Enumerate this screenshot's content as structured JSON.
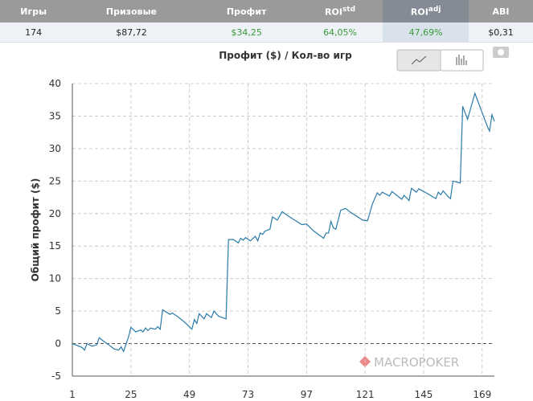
{
  "stats": {
    "headers": [
      {
        "text": "Игры"
      },
      {
        "text": "Призовые"
      },
      {
        "text": "Профит"
      },
      {
        "text": "ROI",
        "sup": "std"
      },
      {
        "text": "ROI",
        "sup": "adj"
      },
      {
        "text": "ABI"
      }
    ],
    "values": [
      "174",
      "$87,72",
      "$34,25",
      "64,05%",
      "47,69%",
      "$0,31"
    ]
  },
  "chart_data": {
    "type": "line",
    "title": "Профит ($) / Кол-во игр",
    "y_label": "Общий профит ($)",
    "watermark": "MACROPOKER",
    "x": [
      1,
      3,
      5,
      6,
      7,
      9,
      11,
      12,
      14,
      16,
      18,
      20,
      21,
      22,
      24,
      25,
      27,
      29,
      30,
      31,
      32,
      33,
      35,
      36,
      37,
      38,
      41,
      42,
      44,
      47,
      50,
      51,
      52,
      53,
      55,
      56,
      58,
      59,
      61,
      64,
      65,
      67,
      69,
      70,
      71,
      72,
      74,
      76,
      77,
      78,
      79,
      80,
      82,
      83,
      85,
      87,
      90,
      93,
      95,
      97,
      100,
      104,
      105,
      106,
      107,
      108,
      109,
      111,
      113,
      115,
      120,
      122,
      124,
      126,
      127,
      128,
      130,
      131,
      132,
      134,
      136,
      137,
      139,
      140,
      142,
      143,
      146,
      150,
      151,
      152,
      153,
      155,
      156,
      157,
      160,
      161,
      163,
      166,
      169,
      171,
      172,
      173,
      174
    ],
    "series": [
      {
        "name": "Профит",
        "color": "#2a7aa8",
        "values": [
          0,
          -0.3,
          -0.6,
          -1.0,
          0,
          -0.4,
          -0.2,
          0.9,
          0.3,
          -0.2,
          -0.8,
          -1.0,
          -0.5,
          -1.2,
          1.0,
          2.5,
          1.8,
          2.1,
          1.8,
          2.4,
          2.0,
          2.4,
          2.2,
          2.6,
          2.2,
          5.2,
          4.5,
          4.7,
          4.2,
          3.3,
          2.2,
          3.7,
          3.1,
          4.6,
          3.8,
          4.6,
          4.0,
          5.0,
          4.2,
          3.8,
          16.0,
          16.0,
          15.5,
          16.2,
          15.9,
          16.3,
          15.8,
          16.5,
          15.8,
          17.0,
          16.8,
          17.3,
          17.6,
          19.5,
          19.0,
          20.3,
          19.5,
          18.8,
          18.3,
          18.4,
          17.3,
          16.2,
          17.0,
          17.0,
          18.8,
          17.8,
          17.6,
          20.5,
          20.8,
          20.2,
          19.0,
          18.9,
          21.5,
          23.2,
          22.8,
          23.3,
          22.9,
          22.7,
          23.4,
          22.8,
          22.2,
          22.8,
          22.0,
          23.9,
          23.3,
          23.8,
          23.2,
          22.3,
          23.3,
          22.9,
          23.5,
          22.6,
          22.3,
          25.0,
          24.7,
          36.5,
          34.5,
          38.5,
          35.5,
          33.5,
          32.7,
          35.2,
          34.2
        ]
      }
    ],
    "xlim": [
      1,
      174
    ],
    "xticks": [
      1,
      25,
      49,
      73,
      97,
      121,
      145,
      169
    ],
    "ylim": [
      -5,
      40
    ],
    "yticks": [
      -5,
      0,
      5,
      10,
      15,
      20,
      25,
      30,
      35,
      40
    ],
    "grid": true
  }
}
